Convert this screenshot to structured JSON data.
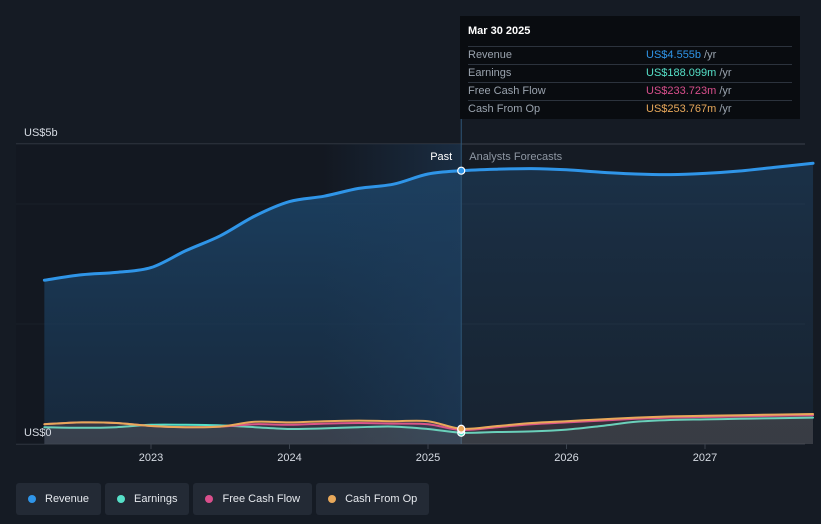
{
  "chart_data": {
    "type": "area",
    "y_axis": {
      "label_top": "US$5b",
      "label_bottom": "US$0",
      "ylim": [
        0,
        5000
      ]
    },
    "x_axis": {
      "tick_labels": [
        "2023",
        "2024",
        "2025",
        "2026",
        "2027"
      ],
      "tick_years": [
        2023,
        2024,
        2025,
        2026,
        2027
      ],
      "xlim": [
        2022.23,
        2027.78
      ]
    },
    "divider_year": 2025.24,
    "past_label": "Past",
    "forecast_label": "Analysts Forecasts",
    "series": [
      {
        "name": "Revenue",
        "color": "#2f95e8",
        "points": [
          [
            2022.23,
            2730
          ],
          [
            2022.5,
            2820
          ],
          [
            2022.75,
            2860
          ],
          [
            2023.0,
            2940
          ],
          [
            2023.25,
            3220
          ],
          [
            2023.5,
            3470
          ],
          [
            2023.75,
            3800
          ],
          [
            2024.0,
            4040
          ],
          [
            2024.25,
            4130
          ],
          [
            2024.5,
            4260
          ],
          [
            2024.75,
            4330
          ],
          [
            2025.0,
            4500
          ],
          [
            2025.24,
            4555
          ],
          [
            2025.5,
            4580
          ],
          [
            2025.75,
            4590
          ],
          [
            2026.0,
            4570
          ],
          [
            2026.25,
            4530
          ],
          [
            2026.5,
            4500
          ],
          [
            2026.75,
            4490
          ],
          [
            2027.0,
            4510
          ],
          [
            2027.25,
            4550
          ],
          [
            2027.5,
            4610
          ],
          [
            2027.78,
            4680
          ]
        ]
      },
      {
        "name": "Earnings",
        "color": "#56e0c8",
        "points": [
          [
            2022.23,
            280
          ],
          [
            2022.5,
            270
          ],
          [
            2022.75,
            280
          ],
          [
            2023.0,
            320
          ],
          [
            2023.25,
            320
          ],
          [
            2023.5,
            310
          ],
          [
            2023.75,
            280
          ],
          [
            2024.0,
            250
          ],
          [
            2024.25,
            260
          ],
          [
            2024.5,
            280
          ],
          [
            2024.75,
            290
          ],
          [
            2025.0,
            250
          ],
          [
            2025.24,
            188
          ],
          [
            2025.5,
            200
          ],
          [
            2025.75,
            210
          ],
          [
            2026.0,
            240
          ],
          [
            2026.25,
            300
          ],
          [
            2026.5,
            370
          ],
          [
            2026.75,
            400
          ],
          [
            2027.0,
            410
          ],
          [
            2027.25,
            420
          ],
          [
            2027.5,
            430
          ],
          [
            2027.78,
            440
          ]
        ]
      },
      {
        "name": "Free Cash Flow",
        "color": "#d94f8c",
        "points": [
          [
            2022.23,
            330
          ],
          [
            2022.5,
            360
          ],
          [
            2022.75,
            350
          ],
          [
            2023.0,
            300
          ],
          [
            2023.25,
            280
          ],
          [
            2023.5,
            290
          ],
          [
            2023.75,
            330
          ],
          [
            2024.0,
            320
          ],
          [
            2024.25,
            340
          ],
          [
            2024.5,
            350
          ],
          [
            2024.75,
            340
          ],
          [
            2025.0,
            330
          ],
          [
            2025.24,
            234
          ],
          [
            2025.5,
            280
          ],
          [
            2025.75,
            330
          ],
          [
            2026.0,
            360
          ],
          [
            2026.25,
            390
          ],
          [
            2026.5,
            420
          ],
          [
            2026.75,
            440
          ],
          [
            2027.0,
            450
          ],
          [
            2027.25,
            460
          ],
          [
            2027.5,
            470
          ],
          [
            2027.78,
            480
          ]
        ]
      },
      {
        "name": "Cash From Op",
        "color": "#e8a85a",
        "points": [
          [
            2022.23,
            330
          ],
          [
            2022.5,
            360
          ],
          [
            2022.75,
            350
          ],
          [
            2023.0,
            300
          ],
          [
            2023.25,
            280
          ],
          [
            2023.5,
            290
          ],
          [
            2023.75,
            370
          ],
          [
            2024.0,
            360
          ],
          [
            2024.25,
            380
          ],
          [
            2024.5,
            390
          ],
          [
            2024.75,
            380
          ],
          [
            2025.0,
            380
          ],
          [
            2025.24,
            254
          ],
          [
            2025.5,
            300
          ],
          [
            2025.75,
            350
          ],
          [
            2026.0,
            380
          ],
          [
            2026.25,
            410
          ],
          [
            2026.5,
            440
          ],
          [
            2026.75,
            460
          ],
          [
            2027.0,
            470
          ],
          [
            2027.25,
            480
          ],
          [
            2027.5,
            490
          ],
          [
            2027.78,
            500
          ]
        ]
      }
    ]
  },
  "tooltip": {
    "date": "Mar 30 2025",
    "unit": "/yr",
    "rows": [
      {
        "label": "Revenue",
        "value": "US$4.555b",
        "color": "#2f95e8"
      },
      {
        "label": "Earnings",
        "value": "US$188.099m",
        "color": "#56e0c8"
      },
      {
        "label": "Free Cash Flow",
        "value": "US$233.723m",
        "color": "#d94f8c"
      },
      {
        "label": "Cash From Op",
        "value": "US$253.767m",
        "color": "#e8a85a"
      }
    ]
  },
  "legend": [
    {
      "label": "Revenue",
      "color": "#2f95e8"
    },
    {
      "label": "Earnings",
      "color": "#56e0c8"
    },
    {
      "label": "Free Cash Flow",
      "color": "#d94f8c"
    },
    {
      "label": "Cash From Op",
      "color": "#e8a85a"
    }
  ]
}
